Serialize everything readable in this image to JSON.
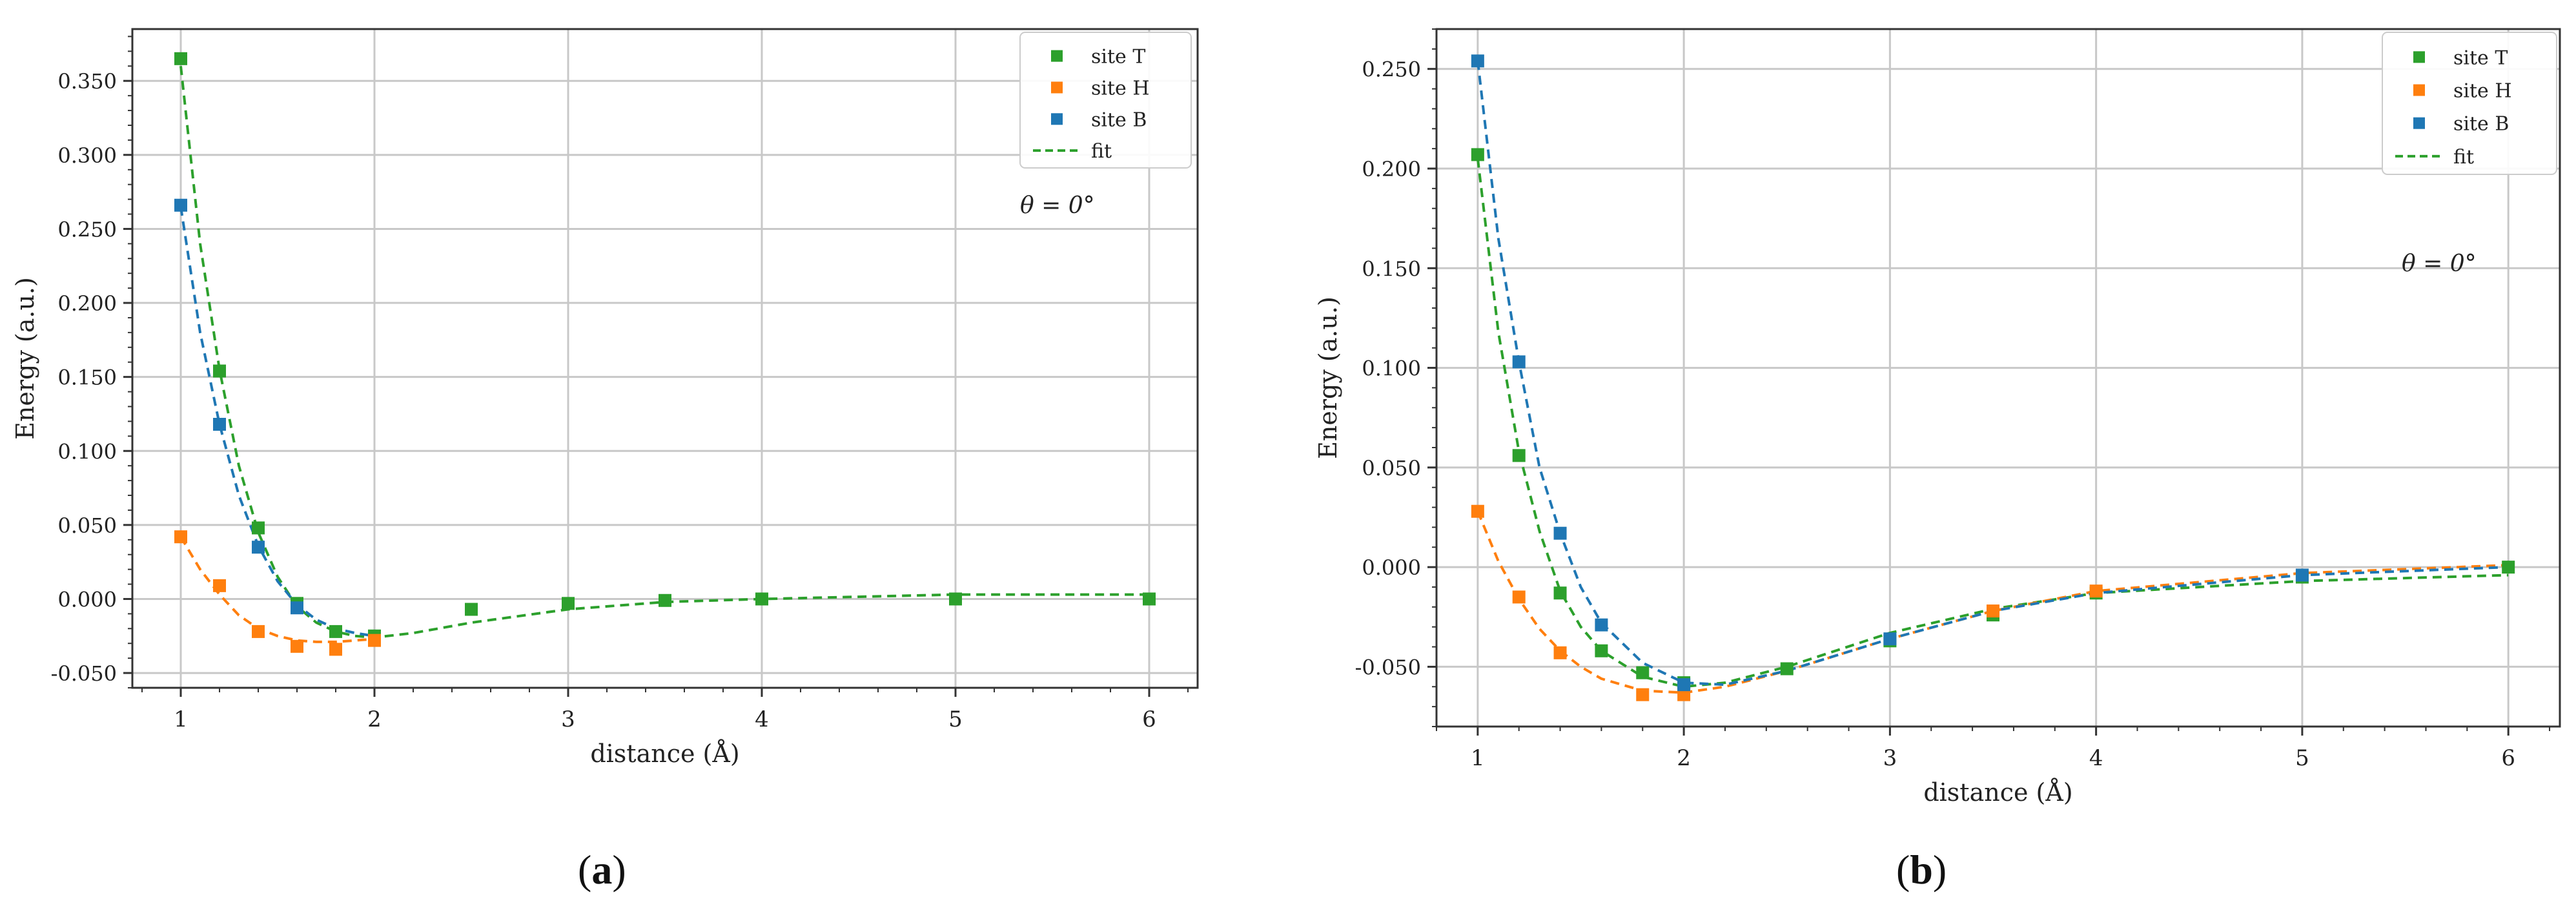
{
  "panels": [
    {
      "caption_open": "(",
      "caption_letter": "a",
      "caption_close": ")"
    },
    {
      "caption_open": "(",
      "caption_letter": "b",
      "caption_close": ")"
    }
  ],
  "chart_data": [
    {
      "type": "scatter",
      "title": "",
      "xlabel": "distance (Å)",
      "ylabel": "Energy (a.u.)",
      "xlim": [
        0.75,
        6.25
      ],
      "ylim": [
        -0.06,
        0.385
      ],
      "xticks": [
        1,
        2,
        3,
        4,
        5,
        6
      ],
      "xtick_labels": [
        "1",
        "2",
        "3",
        "4",
        "5",
        "6"
      ],
      "yticks": [
        -0.05,
        0,
        0.05,
        0.1,
        0.15,
        0.2,
        0.25,
        0.3,
        0.35
      ],
      "ytick_labels": [
        "-0.050",
        "0.000",
        "0.050",
        "0.100",
        "0.150",
        "0.200",
        "0.250",
        "0.300",
        "0.350"
      ],
      "grid": true,
      "legend_position": "top-right",
      "annotation": "θ = 0°",
      "series": [
        {
          "name": "site T",
          "color": "#2ca02c",
          "marker": "square",
          "x": [
            1.0,
            1.2,
            1.4,
            1.6,
            1.8,
            2.0,
            2.5,
            3.0,
            3.5,
            4.0,
            5.0,
            6.0
          ],
          "y": [
            0.365,
            0.154,
            0.048,
            -0.003,
            -0.022,
            -0.025,
            -0.007,
            -0.003,
            -0.001,
            0.0,
            0.0,
            0.0
          ]
        },
        {
          "name": "site H",
          "color": "#ff7f0e",
          "marker": "square",
          "x": [
            1.0,
            1.2,
            1.4,
            1.6,
            1.8,
            2.0
          ],
          "y": [
            0.042,
            0.009,
            -0.022,
            -0.032,
            -0.034,
            -0.028
          ]
        },
        {
          "name": "site B",
          "color": "#1f77b4",
          "marker": "square",
          "x": [
            1.0,
            1.2,
            1.4,
            1.6
          ],
          "y": [
            0.266,
            0.118,
            0.035,
            -0.006
          ]
        }
      ],
      "fit_legend": "fit",
      "fits": [
        {
          "color": "#2ca02c",
          "x": [
            1.0,
            1.1,
            1.2,
            1.3,
            1.4,
            1.5,
            1.6,
            1.7,
            1.8,
            1.9,
            2.0,
            2.2,
            2.5,
            3.0,
            3.5,
            4.0,
            5.0,
            6.0
          ],
          "y": [
            0.36,
            0.24,
            0.155,
            0.09,
            0.045,
            0.015,
            -0.005,
            -0.016,
            -0.022,
            -0.025,
            -0.026,
            -0.023,
            -0.016,
            -0.007,
            -0.002,
            0.0,
            0.003,
            0.003
          ]
        },
        {
          "color": "#ff7f0e",
          "x": [
            1.0,
            1.1,
            1.2,
            1.3,
            1.4,
            1.5,
            1.6,
            1.7,
            1.8,
            1.9,
            2.0
          ],
          "y": [
            0.042,
            0.02,
            0.003,
            -0.011,
            -0.02,
            -0.025,
            -0.028,
            -0.029,
            -0.029,
            -0.028,
            -0.027
          ]
        },
        {
          "color": "#1f77b4",
          "x": [
            1.0,
            1.1,
            1.2,
            1.3,
            1.4,
            1.5,
            1.6,
            1.7,
            1.8,
            1.9,
            2.0
          ],
          "y": [
            0.265,
            0.18,
            0.118,
            0.07,
            0.036,
            0.012,
            -0.004,
            -0.014,
            -0.02,
            -0.023,
            -0.025
          ]
        }
      ]
    },
    {
      "type": "scatter",
      "title": "",
      "xlabel": "distance (Å)",
      "ylabel": "Energy (a.u.)",
      "xlim": [
        0.8,
        6.25
      ],
      "ylim": [
        -0.08,
        0.27
      ],
      "xticks": [
        1,
        2,
        3,
        4,
        5,
        6
      ],
      "xtick_labels": [
        "1",
        "2",
        "3",
        "4",
        "5",
        "6"
      ],
      "yticks": [
        -0.05,
        0,
        0.05,
        0.1,
        0.15,
        0.2,
        0.25
      ],
      "ytick_labels": [
        "-0.050",
        "0.000",
        "0.050",
        "0.100",
        "0.150",
        "0.200",
        "0.250"
      ],
      "grid": true,
      "legend_position": "top-right",
      "annotation": "θ = 0°",
      "series": [
        {
          "name": "site T",
          "color": "#2ca02c",
          "marker": "square",
          "x": [
            1.0,
            1.2,
            1.4,
            1.6,
            1.8,
            2.0,
            2.5,
            3.0,
            3.5,
            4.0,
            5.0,
            6.0
          ],
          "y": [
            0.207,
            0.056,
            -0.013,
            -0.042,
            -0.053,
            -0.058,
            -0.051,
            -0.037,
            -0.024,
            -0.013,
            -0.005,
            0.0
          ]
        },
        {
          "name": "site H",
          "color": "#ff7f0e",
          "marker": "square",
          "x": [
            1.0,
            1.2,
            1.4,
            1.8,
            2.0,
            3.5,
            4.0
          ],
          "y": [
            0.028,
            -0.015,
            -0.043,
            -0.064,
            -0.064,
            -0.022,
            -0.012
          ]
        },
        {
          "name": "site B",
          "color": "#1f77b4",
          "marker": "square",
          "x": [
            1.0,
            1.2,
            1.4,
            1.6,
            2.0,
            3.0,
            5.0
          ],
          "y": [
            0.254,
            0.103,
            0.017,
            -0.029,
            -0.059,
            -0.036,
            -0.004
          ]
        }
      ],
      "fit_legend": "fit",
      "fits": [
        {
          "color": "#2ca02c",
          "x": [
            1.0,
            1.1,
            1.2,
            1.3,
            1.4,
            1.5,
            1.6,
            1.8,
            2.0,
            2.2,
            2.5,
            3.0,
            3.5,
            4.0,
            5.0,
            6.0
          ],
          "y": [
            0.205,
            0.118,
            0.058,
            0.018,
            -0.012,
            -0.03,
            -0.042,
            -0.055,
            -0.06,
            -0.058,
            -0.05,
            -0.033,
            -0.021,
            -0.013,
            -0.007,
            -0.004
          ]
        },
        {
          "color": "#ff7f0e",
          "x": [
            1.0,
            1.1,
            1.2,
            1.3,
            1.4,
            1.5,
            1.6,
            1.8,
            2.0,
            2.2,
            2.5,
            3.0,
            3.5,
            4.0,
            5.0,
            6.0
          ],
          "y": [
            0.028,
            0.003,
            -0.016,
            -0.031,
            -0.042,
            -0.05,
            -0.056,
            -0.062,
            -0.063,
            -0.06,
            -0.052,
            -0.036,
            -0.022,
            -0.012,
            -0.003,
            0.001
          ]
        },
        {
          "color": "#1f77b4",
          "x": [
            1.0,
            1.1,
            1.2,
            1.3,
            1.4,
            1.5,
            1.6,
            1.8,
            2.0,
            2.2,
            2.5,
            3.0,
            3.5,
            4.0,
            5.0,
            6.0
          ],
          "y": [
            0.254,
            0.165,
            0.103,
            0.05,
            0.017,
            -0.01,
            -0.028,
            -0.048,
            -0.058,
            -0.059,
            -0.052,
            -0.036,
            -0.022,
            -0.013,
            -0.004,
            0.0
          ]
        }
      ]
    }
  ]
}
